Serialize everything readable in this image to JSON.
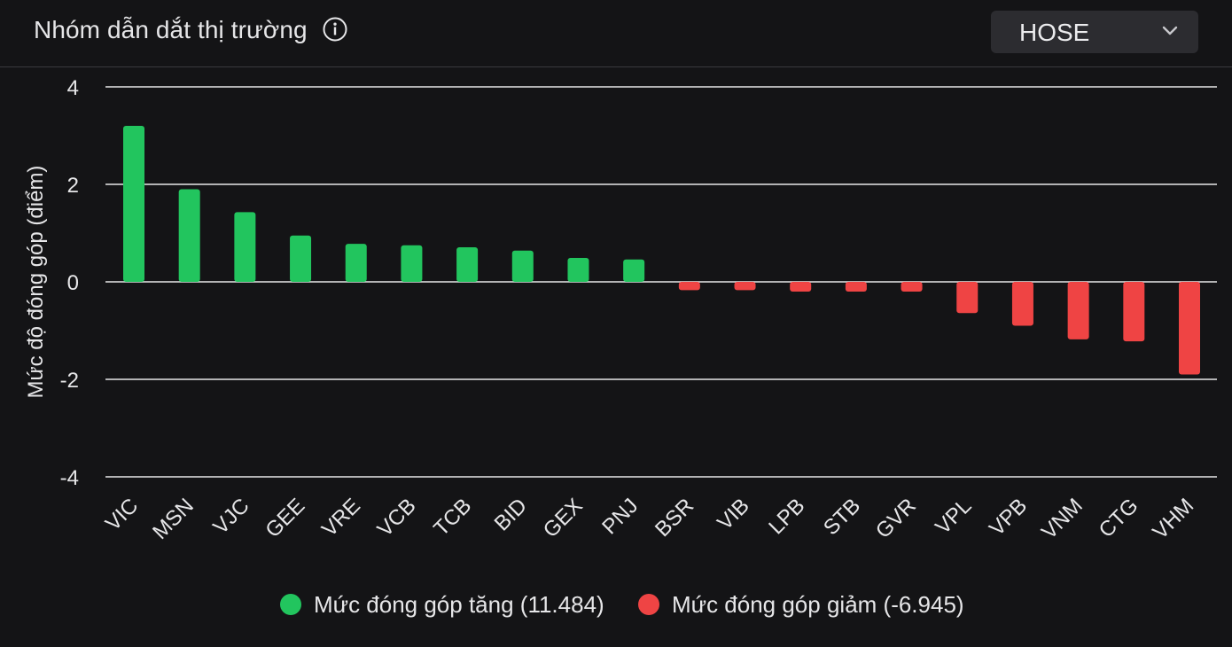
{
  "header": {
    "title": "Nhóm dẫn dắt thị trường",
    "info_icon": "info-circle-icon",
    "exchange_select": {
      "value": "HOSE",
      "icon": "chevron-down-icon"
    }
  },
  "colors": {
    "background": "#141416",
    "positive": "#22c55e",
    "negative": "#ef4444",
    "grid": "#e8e8e8",
    "text": "#e6e6e8"
  },
  "chart_data": {
    "type": "bar",
    "title": "",
    "xlabel": "",
    "ylabel": "Mức độ đóng góp (điểm)",
    "ylim": [
      -4,
      4
    ],
    "yticks": [
      4,
      2,
      0,
      -2,
      -4
    ],
    "grid": true,
    "categories": [
      "VIC",
      "MSN",
      "VJC",
      "GEE",
      "VRE",
      "VCB",
      "TCB",
      "BID",
      "GEX",
      "PNJ",
      "BSR",
      "VIB",
      "LPB",
      "STB",
      "GVR",
      "VPL",
      "VPB",
      "VNM",
      "CTG",
      "VHM"
    ],
    "values": [
      3.2,
      1.9,
      1.43,
      0.95,
      0.78,
      0.75,
      0.71,
      0.64,
      0.49,
      0.46,
      -0.17,
      -0.17,
      -0.2,
      -0.2,
      -0.2,
      -0.64,
      -0.9,
      -1.18,
      -1.22,
      -1.9
    ],
    "legend": [
      {
        "label": "Mức đóng góp tăng (11.484)",
        "color": "#22c55e"
      },
      {
        "label": "Mức đóng góp giảm (-6.945)",
        "color": "#ef4444"
      }
    ]
  }
}
